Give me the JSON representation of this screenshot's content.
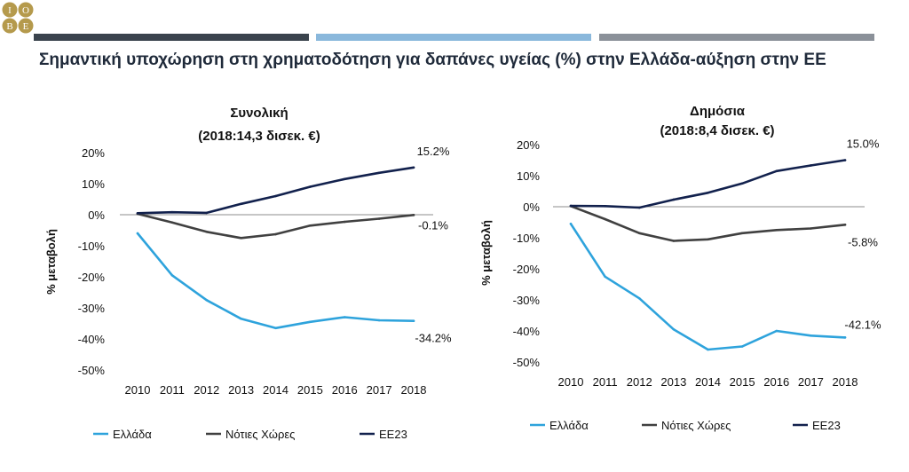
{
  "header": {
    "title": "Σημαντική υποχώρηση στη χρηματοδότηση για δαπάνες υγείας (%) στην Ελλάδα-αύξηση στην ΕΕ",
    "logo_letters": [
      "I",
      "O",
      "B",
      "E"
    ],
    "bar_colors": [
      "#3a434d",
      "#8ab8dc",
      "#8b9199"
    ]
  },
  "colors": {
    "Ελλάδα": "#2ea3dc",
    "Νότιες Χώρες": "#404040",
    "ΕΕ23": "#12214d"
  },
  "chart_data": [
    {
      "type": "line",
      "title": "Συνολική",
      "subtitle": "(2018:14,3 δισεκ. €)",
      "ylabel": "% μεταβολή",
      "xlabel": "",
      "ylim": [
        -50,
        20
      ],
      "yticks": [
        "20%",
        "10%",
        "0%",
        "-10%",
        "-20%",
        "-30%",
        "-40%",
        "-50%"
      ],
      "x": [
        "2010",
        "2011",
        "2012",
        "2013",
        "2014",
        "2015",
        "2016",
        "2017",
        "2018"
      ],
      "grid": false,
      "legend": "bottom",
      "series": [
        {
          "name": "Ελλάδα",
          "values": [
            -6,
            -19.5,
            -27.5,
            -33.5,
            -36.5,
            -34.5,
            -33,
            -34,
            -34.2
          ],
          "end_label": "-34.2%"
        },
        {
          "name": "Νότιες Χώρες",
          "values": [
            0.3,
            -2.5,
            -5.5,
            -7.5,
            -6.3,
            -3.5,
            -2.3,
            -1.3,
            -0.1
          ],
          "end_label": "-0.1%"
        },
        {
          "name": "ΕΕ23",
          "values": [
            0.5,
            0.8,
            0.6,
            3.5,
            6,
            9,
            11.5,
            13.5,
            15.2
          ],
          "end_label": "15.2%"
        }
      ]
    },
    {
      "type": "line",
      "title": "Δημόσια",
      "subtitle": "(2018:8,4 δισεκ. €)",
      "ylabel": "% μεταβολή",
      "xlabel": "",
      "ylim": [
        -50,
        20
      ],
      "yticks": [
        "20%",
        "10%",
        "0%",
        "-10%",
        "-20%",
        "-30%",
        "-40%",
        "-50%"
      ],
      "x": [
        "2010",
        "2011",
        "2012",
        "2013",
        "2014",
        "2015",
        "2016",
        "2017",
        "2018"
      ],
      "grid": false,
      "legend": "bottom",
      "series": [
        {
          "name": "Ελλάδα",
          "values": [
            -5.5,
            -22.5,
            -29.5,
            -39.5,
            -46,
            -45,
            -40,
            -41.5,
            -42.1
          ],
          "end_label": "-42.1%"
        },
        {
          "name": "Νότιες Χώρες",
          "values": [
            0.2,
            -4,
            -8.5,
            -11,
            -10.5,
            -8.5,
            -7.5,
            -7,
            -5.8
          ],
          "end_label": "-5.8%"
        },
        {
          "name": "ΕΕ23",
          "values": [
            0.3,
            0.2,
            -0.3,
            2.3,
            4.5,
            7.5,
            11.5,
            13.3,
            15.0
          ],
          "end_label": "15.0%"
        }
      ]
    }
  ]
}
